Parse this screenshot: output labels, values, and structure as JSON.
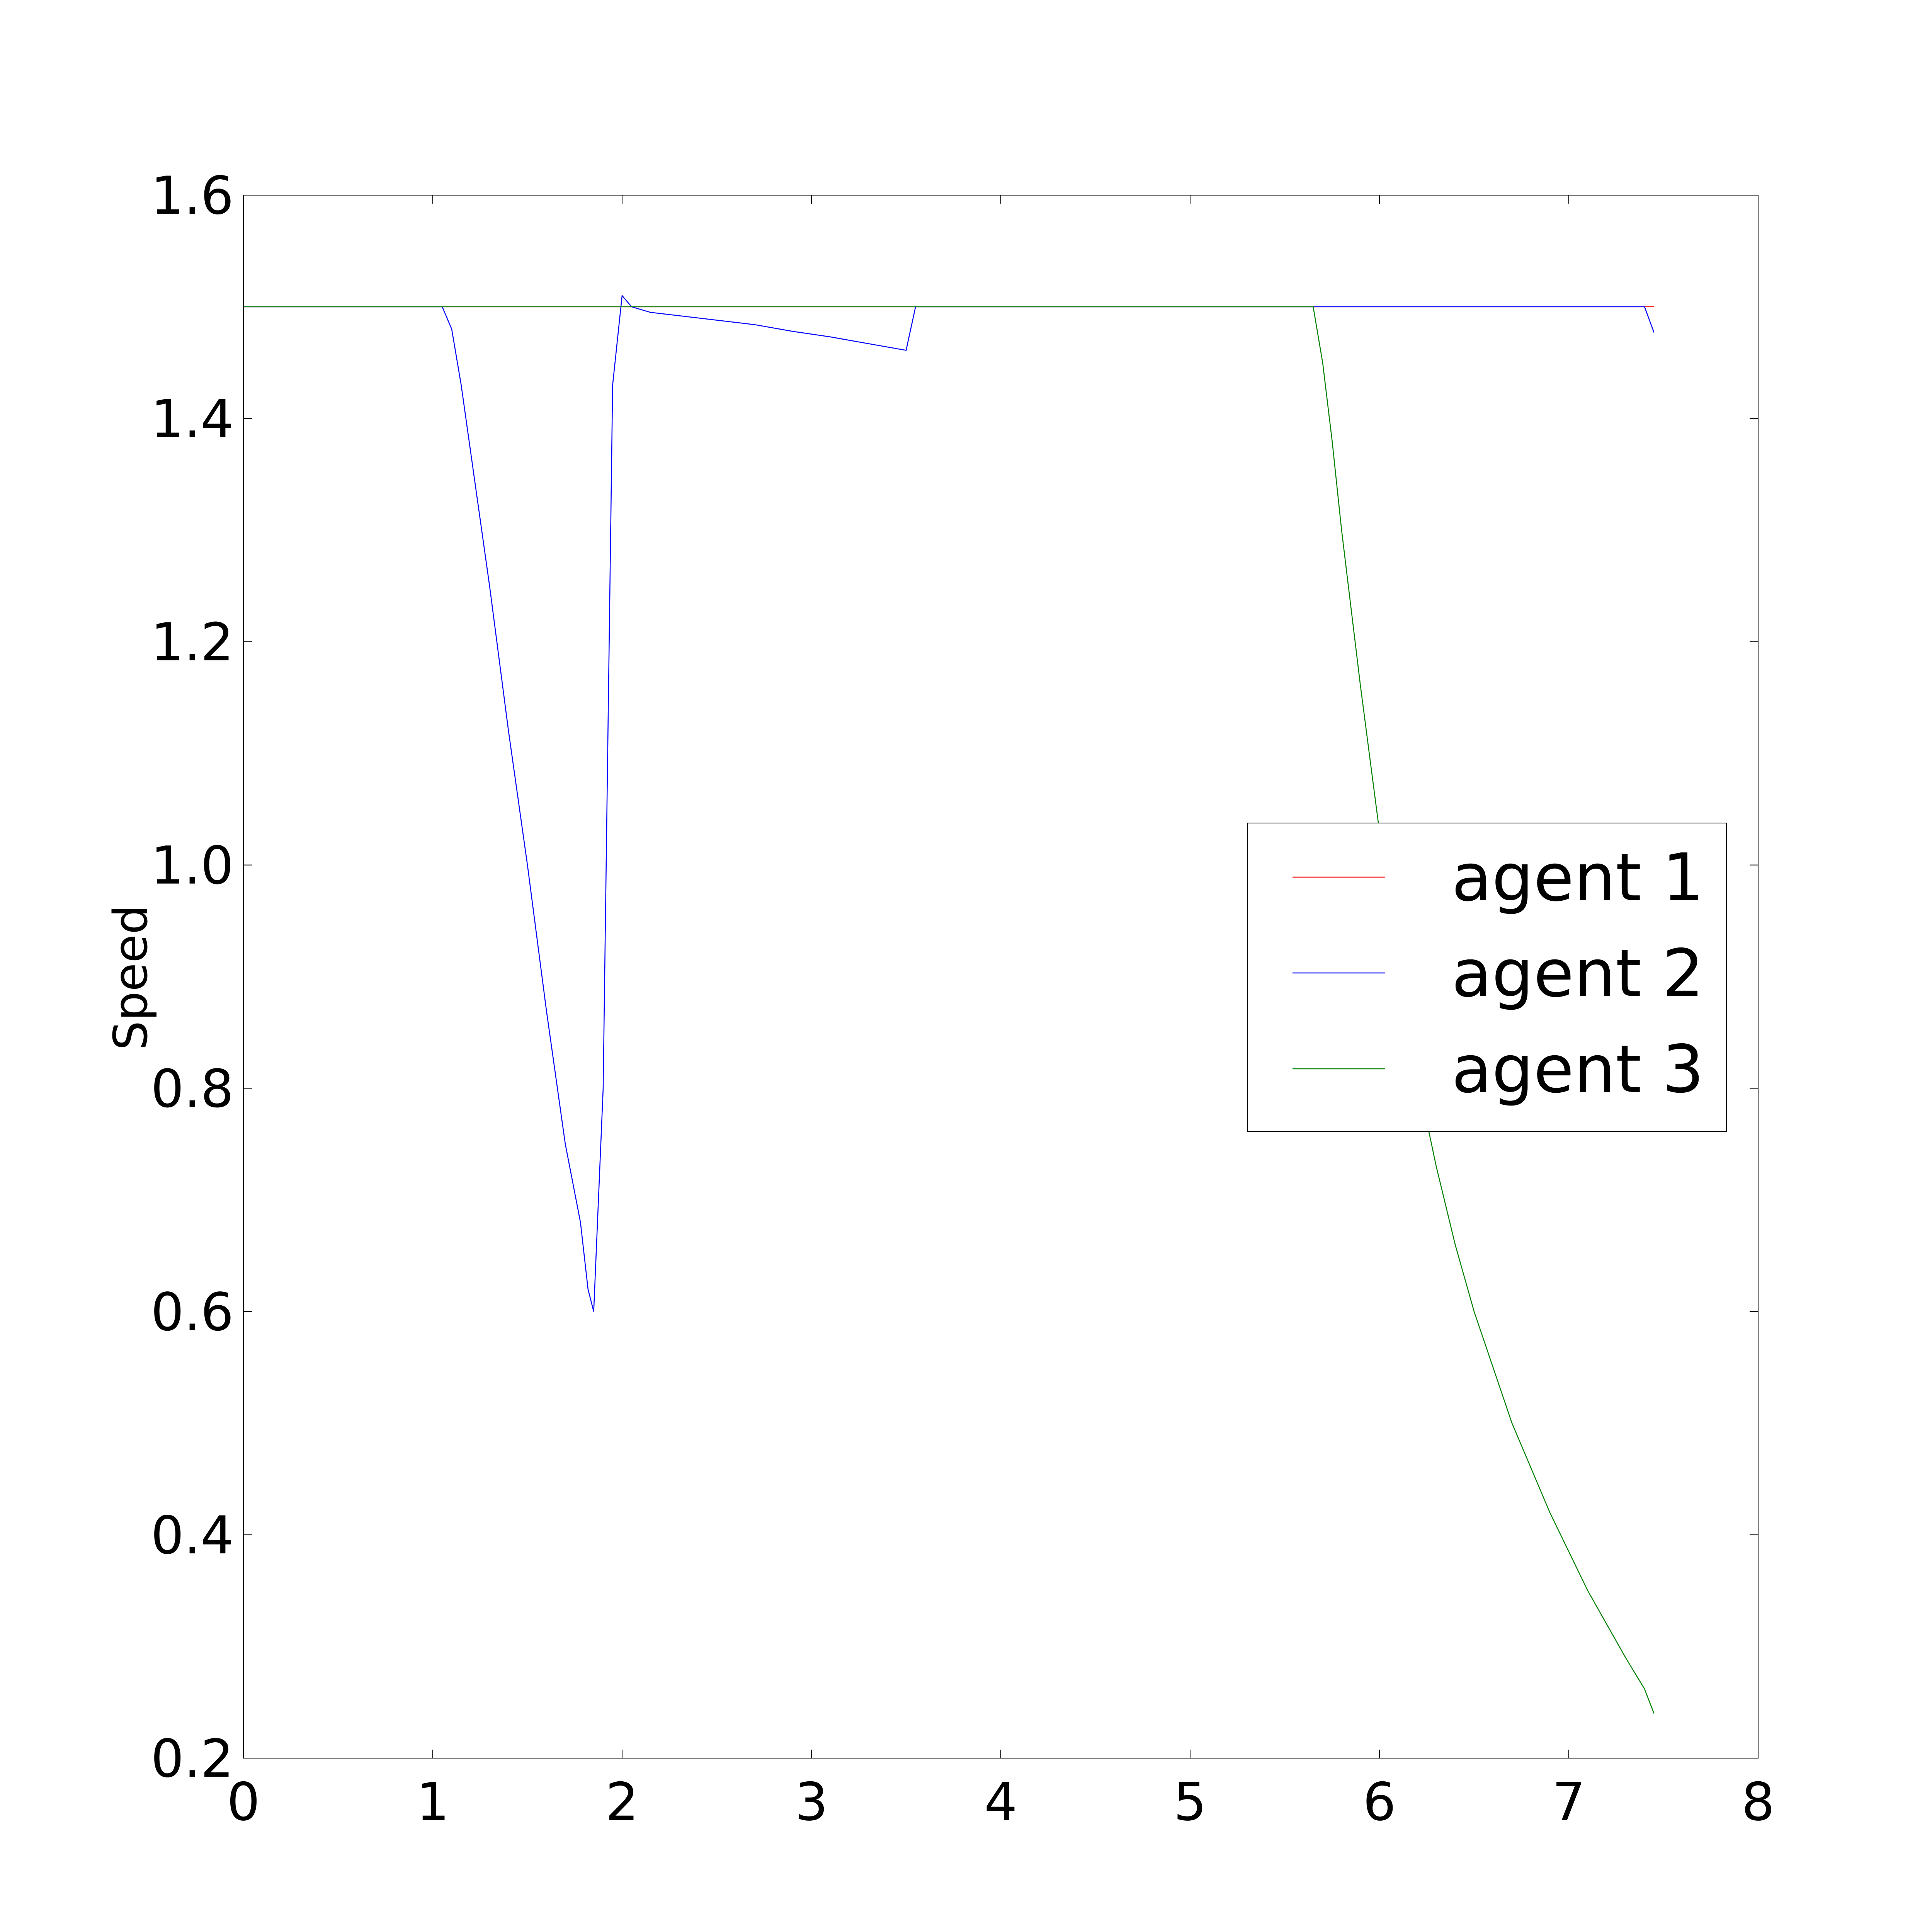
{
  "chart_data": {
    "type": "line",
    "title": "",
    "xlabel": "",
    "ylabel": "Speed",
    "xlim": [
      0,
      8
    ],
    "ylim": [
      0.2,
      1.6
    ],
    "xticks": [
      0,
      1,
      2,
      3,
      4,
      5,
      6,
      7,
      8
    ],
    "xtick_labels": [
      "0",
      "1",
      "2",
      "3",
      "4",
      "5",
      "6",
      "7",
      "8"
    ],
    "yticks": [
      0.2,
      0.4,
      0.6,
      0.8,
      1.0,
      1.2,
      1.4,
      1.6
    ],
    "ytick_labels": [
      "0.2",
      "0.4",
      "0.6",
      "0.8",
      "1.0",
      "1.2",
      "1.4",
      "1.6"
    ],
    "grid": false,
    "legend_position": "center-right",
    "series": [
      {
        "name": "agent 1",
        "color": "#ff0000",
        "x": [
          0,
          1.05,
          2.0,
          3.5,
          3.55,
          5.65,
          7.45
        ],
        "y": [
          1.5,
          1.5,
          1.5,
          1.5,
          1.5,
          1.5,
          1.5
        ]
      },
      {
        "name": "agent 2",
        "color": "#0000ff",
        "x": [
          0,
          1.05,
          1.1,
          1.15,
          1.2,
          1.3,
          1.4,
          1.5,
          1.6,
          1.7,
          1.78,
          1.82,
          1.85,
          1.9,
          1.95,
          2.0,
          2.05,
          2.15,
          2.3,
          2.5,
          2.7,
          2.9,
          3.1,
          3.3,
          3.5,
          3.55,
          3.7,
          4.0,
          5.0,
          6.0,
          7.0,
          7.4,
          7.45
        ],
        "y": [
          1.5,
          1.5,
          1.48,
          1.43,
          1.37,
          1.25,
          1.12,
          1.0,
          0.87,
          0.75,
          0.68,
          0.62,
          0.6,
          0.8,
          1.43,
          1.51,
          1.5,
          1.495,
          1.492,
          1.488,
          1.484,
          1.478,
          1.473,
          1.467,
          1.461,
          1.5,
          1.5,
          1.5,
          1.5,
          1.5,
          1.5,
          1.5,
          1.477
        ]
      },
      {
        "name": "agent 3",
        "color": "#008000",
        "x": [
          0,
          1.0,
          2.0,
          3.0,
          4.0,
          5.0,
          5.65,
          5.7,
          5.75,
          5.8,
          5.9,
          6.0,
          6.1,
          6.2,
          6.3,
          6.4,
          6.5,
          6.6,
          6.7,
          6.8,
          6.9,
          7.0,
          7.1,
          7.2,
          7.3,
          7.4,
          7.45
        ],
        "y": [
          1.5,
          1.5,
          1.5,
          1.5,
          1.5,
          1.5,
          1.5,
          1.45,
          1.38,
          1.3,
          1.16,
          1.03,
          0.91,
          0.81,
          0.73,
          0.66,
          0.6,
          0.55,
          0.5,
          0.46,
          0.42,
          0.385,
          0.35,
          0.32,
          0.29,
          0.262,
          0.24
        ]
      }
    ]
  }
}
